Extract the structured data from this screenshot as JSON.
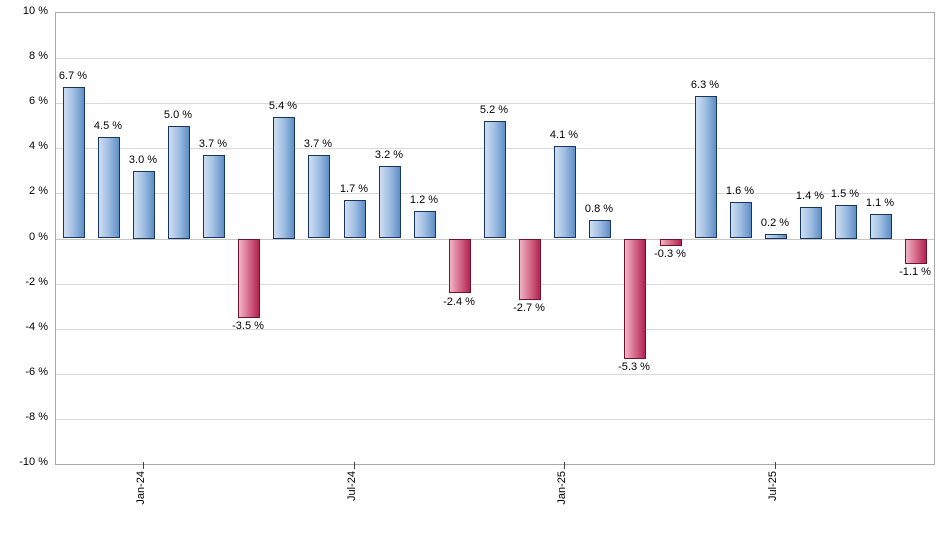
{
  "chart_data": {
    "type": "bar",
    "title": "",
    "xlabel": "",
    "ylabel": "",
    "ylim": [
      -10,
      10
    ],
    "y_tick_step": 2,
    "grid": true,
    "legend": "none",
    "values": [
      6.7,
      4.5,
      3.0,
      5.0,
      3.7,
      -3.5,
      5.4,
      3.7,
      1.7,
      3.2,
      1.2,
      -2.4,
      5.2,
      -2.7,
      4.1,
      0.8,
      -5.3,
      -0.3,
      6.3,
      1.6,
      0.2,
      1.4,
      1.5,
      1.1,
      -1.1
    ],
    "data_labels": [
      "6.7 %",
      "4.5 %",
      "3.0 %",
      "5.0 %",
      "3.7 %",
      "-3.5 %",
      "5.4 %",
      "3.7 %",
      "1.7 %",
      "3.2 %",
      "1.2 %",
      "-2.4 %",
      "5.2 %",
      "-2.7 %",
      "4.1 %",
      "0.8 %",
      "-5.3 %",
      "-0.3 %",
      "6.3 %",
      "1.6 %",
      "0.2 %",
      "1.4 %",
      "1.5 %",
      "1.1 %",
      "-1.1 %"
    ],
    "y_tick_labels": [
      "10 %",
      "8 %",
      "6 %",
      "4 %",
      "2 %",
      "0 %",
      "-2 %",
      "-4 %",
      "-6 %",
      "-8 %",
      "-10 %"
    ],
    "x_ticks": [
      {
        "bar_index": 2,
        "label": "Jan-24"
      },
      {
        "bar_index": 8,
        "label": "Jul-24"
      },
      {
        "bar_index": 14,
        "label": "Jan-25"
      },
      {
        "bar_index": 20,
        "label": "Jul-25"
      }
    ],
    "colors": {
      "positive_bar": {
        "light": "#cfdef1",
        "mid": "#a3c1e4",
        "dark": "#5f8fc6",
        "border": "#17365d"
      },
      "negative_bar": {
        "light": "#f0b6c6",
        "mid": "#d8718e",
        "dark": "#b22451",
        "border": "#701330"
      },
      "grid_line": "#d9d9d9",
      "plot_border": "#a9a9a9"
    }
  }
}
